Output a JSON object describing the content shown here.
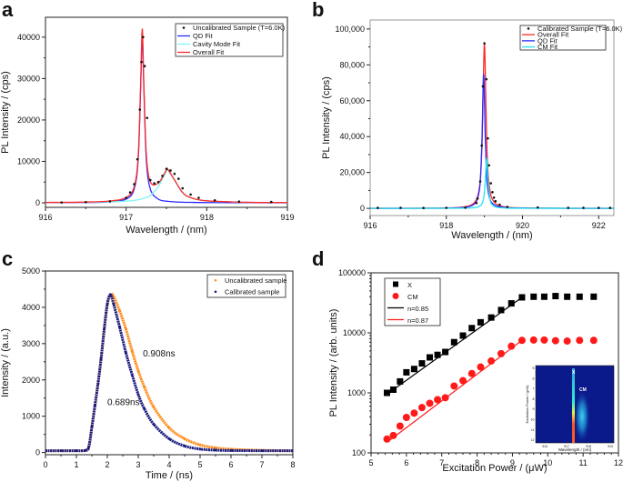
{
  "chart_data": [
    {
      "panel": "a",
      "type": "line",
      "xlabel": "Wavelength / (nm)",
      "ylabel": "PL Intensity / (cps)",
      "xlim": [
        916,
        919
      ],
      "ylim": [
        -1100,
        44800
      ],
      "xticks": [
        916,
        917,
        918,
        919
      ],
      "xtick_labels": [
        "916",
        "917",
        "918",
        "919"
      ],
      "yticks": [
        0,
        10000,
        20000,
        30000,
        40000
      ],
      "ytick_labels": [
        "0",
        "10000",
        "20000",
        "30000",
        "40000"
      ],
      "legend": "top-right",
      "series": [
        {
          "name": "Uncalibrated Sample (T=6.0K)",
          "kind": "scatter",
          "color": "#111111",
          "x": [
            916.2,
            916.5,
            916.8,
            917.0,
            917.05,
            917.1,
            917.14,
            917.17,
            917.19,
            917.21,
            917.23,
            917.26,
            917.3,
            917.35,
            917.4,
            917.45,
            917.5,
            917.55,
            917.6,
            917.65,
            917.7,
            917.8,
            917.9,
            918.1,
            918.4,
            918.8
          ],
          "y": [
            80,
            150,
            350,
            1200,
            2500,
            4500,
            10500,
            22500,
            34000,
            40000,
            33000,
            20500,
            5500,
            4700,
            5000,
            6500,
            8200,
            7800,
            7000,
            5800,
            3500,
            2000,
            1200,
            600,
            300,
            200
          ]
        },
        {
          "name": "QD Fit",
          "kind": "line",
          "color": "#2a2aff",
          "x": [
            916,
            916.5,
            916.8,
            917.0,
            917.1,
            917.15,
            917.18,
            917.2,
            917.22,
            917.25,
            917.3,
            917.4,
            917.5,
            917.52,
            917.6,
            917.7,
            917.8,
            918.0,
            918.5,
            919
          ],
          "y": [
            25,
            73,
            224,
            880,
            3300,
            10590,
            27700,
            40000,
            27700,
            10590,
            3300,
            880,
            396,
            348,
            224,
            143,
            100,
            56,
            21,
            11
          ]
        },
        {
          "name": "Cavity Mode Fit",
          "kind": "line",
          "color": "#7ff5f5",
          "x": [
            916,
            916.5,
            916.8,
            917.0,
            917.1,
            917.15,
            917.18,
            917.2,
            917.22,
            917.25,
            917.3,
            917.4,
            917.5,
            917.52,
            917.6,
            917.7,
            917.8,
            918.0,
            918.5,
            919
          ],
          "y": [
            48,
            106,
            211,
            394,
            589,
            742,
            864,
            962,
            1076,
            1287,
            1789,
            3900,
            7589,
            7800,
            5400,
            2400,
            1210,
            459,
            115,
            51
          ]
        },
        {
          "name": "Overall Fit",
          "kind": "line",
          "color": "#ff2a2a",
          "x": [
            916,
            916.5,
            916.8,
            917.0,
            917.1,
            917.15,
            917.18,
            917.2,
            917.22,
            917.25,
            917.3,
            917.4,
            917.5,
            917.52,
            917.6,
            917.7,
            917.8,
            918.0,
            918.5,
            919
          ],
          "y": [
            73,
            179,
            435,
            1274,
            3889,
            11332,
            28564,
            42000,
            28776,
            11877,
            5089,
            4780,
            7937,
            8024,
            5543,
            2500,
            1266,
            480,
            126,
            56
          ]
        }
      ]
    },
    {
      "panel": "b",
      "type": "line",
      "xlabel": "Wavelength / (nm)",
      "ylabel": "PL Intensity / (cps)",
      "xlim": [
        916,
        922.4
      ],
      "ylim": [
        -4000,
        105000
      ],
      "xticks": [
        916,
        918,
        920,
        922
      ],
      "xtick_labels": [
        "916",
        "918",
        "920",
        "922"
      ],
      "yticks": [
        0,
        20000,
        40000,
        60000,
        80000,
        100000
      ],
      "ytick_labels": [
        "0",
        "20,000",
        "40,000",
        "60,000",
        "80,000",
        "100,000"
      ],
      "legend": "top-right",
      "series": [
        {
          "name": "Calibrated Sample (T=6.0K)",
          "kind": "scatter",
          "color": "#111111",
          "x": [
            916.2,
            916.8,
            917.4,
            918.0,
            918.5,
            918.79,
            918.82,
            918.89,
            918.93,
            918.96,
            919.0,
            919.05,
            919.09,
            919.12,
            919.17,
            919.21,
            919.25,
            919.29,
            919.4,
            919.6,
            920.4,
            921.2,
            921.6,
            922.0,
            922.3
          ],
          "y": [
            300,
            300,
            200,
            300,
            400,
            3000,
            5500,
            15000,
            35000,
            68000,
            92000,
            72000,
            39000,
            24000,
            14000,
            9000,
            6000,
            4000,
            2000,
            800,
            500,
            300,
            300,
            300,
            300
          ]
        },
        {
          "name": "Overall Fit",
          "kind": "line",
          "color": "#ff2a2a",
          "x": [
            916,
            917,
            918,
            918.5,
            918.7,
            918.8,
            918.86,
            918.9,
            918.94,
            918.98,
            919.0,
            919.02,
            919.06,
            919.1,
            919.15,
            919.2,
            919.3,
            919.4,
            919.6,
            920,
            921,
            922.4
          ],
          "y": [
            25,
            57,
            229,
            911,
            2486,
            5412,
            10400,
            18400,
            37700,
            79300,
            92000,
            79300,
            37700,
            18400,
            9200,
            5412,
            2486,
            1415,
            634,
            229,
            57,
            19
          ]
        },
        {
          "name": "QD Fit",
          "kind": "line",
          "color": "#2a2aff",
          "x": [
            916,
            917,
            918,
            918.5,
            918.7,
            918.8,
            918.86,
            918.9,
            918.94,
            918.98,
            919.02,
            919.06,
            919.1,
            919.15,
            919.2,
            919.3,
            919.4,
            919.6,
            920,
            921,
            922.4
          ],
          "y": [
            17,
            38,
            156,
            645,
            1866,
            4360,
            9146,
            17860,
            41667,
            75000,
            41667,
            17860,
            9146,
            4854,
            2976,
            1437,
            841,
            388,
            144,
            37,
            12
          ]
        },
        {
          "name": "CM Fit",
          "kind": "line",
          "color": "#22e5f0",
          "x": [
            916,
            917,
            918,
            918.5,
            918.7,
            918.8,
            918.86,
            918.9,
            918.94,
            918.98,
            919.02,
            919.06,
            919.1,
            919.15,
            919.2,
            919.3,
            919.4,
            919.6,
            920,
            921,
            922.4
          ],
          "y": [
            5,
            11,
            40,
            142,
            341,
            647,
            1077,
            1647,
            2800,
            5600,
            14000,
            28000,
            14000,
            4619,
            2113,
            757,
            382,
            153,
            51,
            12,
            4
          ]
        }
      ]
    },
    {
      "panel": "c",
      "type": "scatter",
      "xlabel": "Time / (ns)",
      "ylabel": "Intensity / (a.u.)",
      "xlim": [
        0,
        8
      ],
      "ylim": [
        -60,
        5000
      ],
      "xticks": [
        0,
        1,
        2,
        3,
        4,
        5,
        6,
        7,
        8
      ],
      "xtick_labels": [
        "0",
        "1",
        "2",
        "3",
        "4",
        "5",
        "6",
        "7",
        "8"
      ],
      "yticks": [
        0,
        1000,
        2000,
        3000,
        4000,
        5000
      ],
      "ytick_labels": [
        "0",
        "1000",
        "2000",
        "3000",
        "4000",
        "5000"
      ],
      "legend": "top-right",
      "annotations": [
        {
          "text": "0.908ns",
          "x": 3.15,
          "y": 2650
        },
        {
          "text": "0.689ns",
          "x": 2.0,
          "y": 1300
        }
      ],
      "series": [
        {
          "name": "Uncalibrated sample",
          "kind": "dense",
          "color": "#ff8c1a",
          "x": [
            0,
            0.5,
            1.0,
            1.3,
            1.4,
            1.5,
            1.6,
            1.7,
            1.8,
            1.9,
            2.0,
            2.1,
            2.2,
            2.4,
            2.6,
            2.8,
            3.0,
            3.2,
            3.5,
            4.0,
            4.5,
            5.0,
            5.5,
            6.0,
            7.0,
            8.0
          ],
          "y": [
            50,
            50,
            50,
            60,
            150,
            700,
            1300,
            1900,
            2600,
            3400,
            4050,
            4350,
            4300,
            3900,
            3400,
            2800,
            2250,
            1800,
            1250,
            680,
            380,
            210,
            130,
            90,
            60,
            50
          ]
        },
        {
          "name": "Calibrated sample",
          "kind": "dense",
          "color": "#1a1a80",
          "x": [
            0,
            0.5,
            1.0,
            1.3,
            1.4,
            1.5,
            1.6,
            1.7,
            1.8,
            1.9,
            2.0,
            2.1,
            2.2,
            2.4,
            2.6,
            2.8,
            3.0,
            3.2,
            3.5,
            4.0,
            4.5,
            5.0,
            5.5,
            6.0,
            7.0,
            8.0
          ],
          "y": [
            50,
            50,
            50,
            60,
            150,
            700,
            1300,
            1900,
            2600,
            3400,
            4100,
            4350,
            4100,
            3450,
            2750,
            2150,
            1600,
            1200,
            780,
            380,
            180,
            95,
            65,
            55,
            50,
            50
          ]
        }
      ]
    },
    {
      "panel": "d",
      "type": "scatter",
      "xlabel": "Excitation Power / (μW)",
      "ylabel": "PL Intensity / (arb. units)",
      "xlim": [
        5,
        12
      ],
      "ylim": [
        100,
        100000
      ],
      "yscale": "log",
      "xticks": [
        5,
        6,
        7,
        8,
        9,
        10,
        11,
        12
      ],
      "xtick_labels": [
        "5",
        "6",
        "7",
        "8",
        "9",
        "10",
        "11",
        "12"
      ],
      "yticks": [
        100,
        1000,
        10000,
        100000
      ],
      "ytick_labels": [
        "100",
        "1000",
        "10000",
        "100000"
      ],
      "legend": "top-left",
      "series": [
        {
          "name": "X",
          "kind": "square",
          "color": "#000000",
          "x": [
            5.45,
            5.63,
            5.82,
            6.0,
            6.22,
            6.44,
            6.66,
            6.88,
            7.1,
            7.35,
            7.6,
            7.85,
            8.1,
            8.4,
            8.68,
            8.97,
            9.27,
            9.6,
            9.9,
            10.22,
            10.55,
            10.9,
            11.3
          ],
          "y": [
            1000,
            1130,
            1550,
            2200,
            2500,
            3100,
            3900,
            4300,
            4800,
            7000,
            9000,
            12000,
            15000,
            18000,
            24000,
            31000,
            39000,
            40000,
            40000,
            41000,
            40000,
            40000,
            40000
          ]
        },
        {
          "name": "CM",
          "kind": "circle",
          "color": "#ff1a1a",
          "x": [
            5.45,
            5.63,
            5.82,
            6.0,
            6.22,
            6.44,
            6.66,
            6.88,
            7.1,
            7.35,
            7.6,
            7.85,
            8.1,
            8.4,
            8.68,
            8.97,
            9.27,
            9.6,
            9.9,
            10.22,
            10.55,
            10.9,
            11.3
          ],
          "y": [
            170,
            195,
            280,
            390,
            460,
            570,
            670,
            770,
            830,
            1300,
            1600,
            2100,
            2700,
            3400,
            4500,
            6000,
            7500,
            7600,
            7600,
            7400,
            7300,
            7500,
            7500
          ]
        },
        {
          "name": "n=0.85",
          "kind": "line",
          "color": "#000000",
          "x": [
            5.45,
            9.27
          ],
          "y": [
            950,
            39000
          ]
        },
        {
          "name": "n=0.87",
          "kind": "line",
          "color": "#ff1a1a",
          "x": [
            5.45,
            9.27
          ],
          "y": [
            150,
            7500
          ]
        }
      ],
      "inset": {
        "labels": {
          "x_peak": "X",
          "cm_peak": "CM"
        },
        "xlabel": "Wavelength / (nm)",
        "ylabel": "Excitation Power / (μW)",
        "xtick_labels": [
          "916",
          "917",
          "918",
          "919"
        ],
        "ytick_labels": [
          "5",
          "6",
          "7",
          "8",
          "9",
          "10",
          "11",
          "12"
        ]
      }
    }
  ],
  "panels": {
    "a": "a",
    "b": "b",
    "c": "c",
    "d": "d"
  }
}
